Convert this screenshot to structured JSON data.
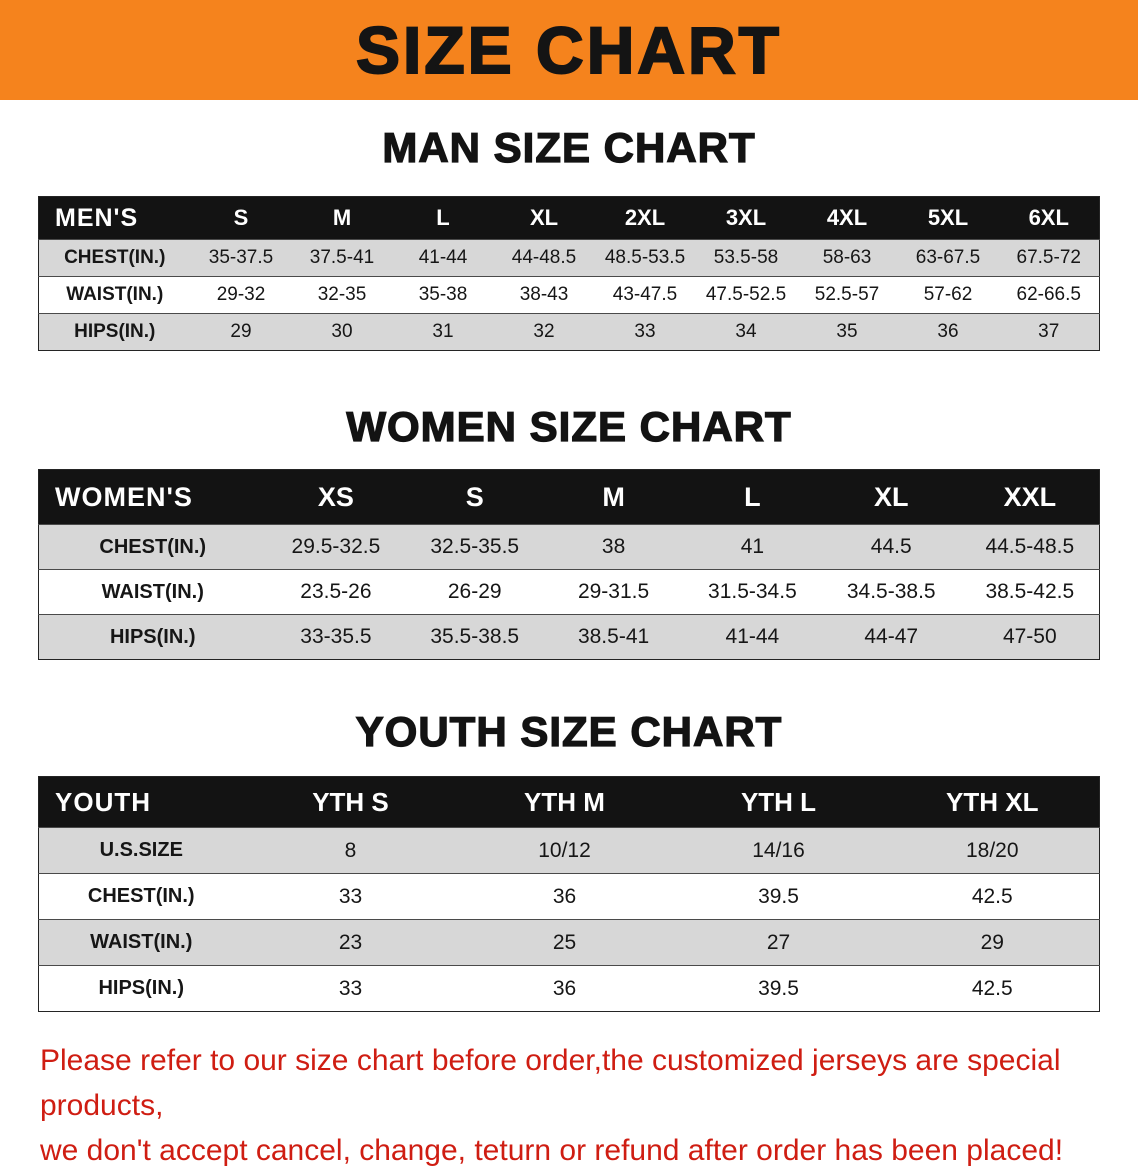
{
  "banner": {
    "title": "SIZE CHART"
  },
  "colors": {
    "banner_bg": "#f5831d",
    "table_header_bg": "#131313",
    "row_stripe": "#d7d7d7",
    "footnote_text": "#cf1d12"
  },
  "chart_data": [
    {
      "type": "table",
      "id": "men",
      "title": "MAN SIZE CHART",
      "columns": [
        "MEN'S",
        "S",
        "M",
        "L",
        "XL",
        "2XL",
        "3XL",
        "4XL",
        "5XL",
        "6XL"
      ],
      "rows": [
        [
          "CHEST(IN.)",
          "35-37.5",
          "37.5-41",
          "41-44",
          "44-48.5",
          "48.5-53.5",
          "53.5-58",
          "58-63",
          "63-67.5",
          "67.5-72"
        ],
        [
          "WAIST(IN.)",
          "29-32",
          "32-35",
          "35-38",
          "38-43",
          "43-47.5",
          "47.5-52.5",
          "52.5-57",
          "57-62",
          "62-66.5"
        ],
        [
          "HIPS(IN.)",
          "29",
          "30",
          "31",
          "32",
          "33",
          "34",
          "35",
          "36",
          "37"
        ]
      ]
    },
    {
      "type": "table",
      "id": "women",
      "title": "WOMEN SIZE CHART",
      "columns": [
        "WOMEN'S",
        "XS",
        "S",
        "M",
        "L",
        "XL",
        "XXL"
      ],
      "rows": [
        [
          "CHEST(IN.)",
          "29.5-32.5",
          "32.5-35.5",
          "38",
          "41",
          "44.5",
          "44.5-48.5"
        ],
        [
          "WAIST(IN.)",
          "23.5-26",
          "26-29",
          "29-31.5",
          "31.5-34.5",
          "34.5-38.5",
          "38.5-42.5"
        ],
        [
          "HIPS(IN.)",
          "33-35.5",
          "35.5-38.5",
          "38.5-41",
          "41-44",
          "44-47",
          "47-50"
        ]
      ]
    },
    {
      "type": "table",
      "id": "youth",
      "title": "YOUTH SIZE CHART",
      "columns": [
        "YOUTH",
        "YTH S",
        "YTH M",
        "YTH L",
        "YTH XL"
      ],
      "rows": [
        [
          "U.S.SIZE",
          "8",
          "10/12",
          "14/16",
          "18/20"
        ],
        [
          "CHEST(IN.)",
          "33",
          "36",
          "39.5",
          "42.5"
        ],
        [
          "WAIST(IN.)",
          "23",
          "25",
          "27",
          "29"
        ],
        [
          "HIPS(IN.)",
          "33",
          "36",
          "39.5",
          "42.5"
        ]
      ]
    }
  ],
  "footnote": {
    "line1": "Please refer to our size chart before order,the customized jerseys are special products,",
    "line2": "we don't accept cancel, change, teturn or refund after order has been placed!"
  }
}
